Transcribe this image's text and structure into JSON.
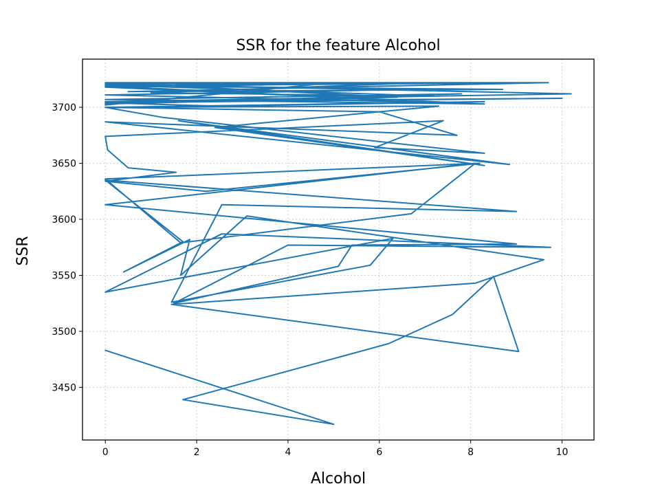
{
  "chart_data": {
    "type": "line",
    "title": "SSR for the feature Alcohol",
    "xlabel": "Alcohol",
    "ylabel": "SSR",
    "xlim": [
      -0.5,
      10.7
    ],
    "ylim": [
      3403,
      3743
    ],
    "xticks": [
      0,
      2,
      4,
      6,
      8,
      10
    ],
    "yticks": [
      3450,
      3500,
      3550,
      3600,
      3650,
      3700
    ],
    "grid": true,
    "line_color": "#1f77b4",
    "series": [
      {
        "values": [
          [
            0.0,
            3483
          ],
          [
            5.0,
            3417
          ],
          [
            1.7,
            3439
          ],
          [
            6.2,
            3489
          ],
          [
            7.6,
            3515
          ],
          [
            8.5,
            3549
          ],
          [
            9.05,
            3482
          ],
          [
            1.45,
            3524
          ],
          [
            8.1,
            3543
          ],
          [
            9.6,
            3564
          ],
          [
            3.1,
            3603
          ],
          [
            1.65,
            3550
          ],
          [
            1.85,
            3582
          ],
          [
            0.4,
            3553
          ],
          [
            1.7,
            3580
          ],
          [
            0.0,
            3635
          ],
          [
            9.0,
            3607
          ],
          [
            2.55,
            3613
          ],
          [
            1.45,
            3526
          ],
          [
            5.8,
            3559
          ],
          [
            6.3,
            3583
          ],
          [
            0.0,
            3535
          ],
          [
            2.55,
            3587
          ],
          [
            9.75,
            3575
          ],
          [
            4.0,
            3577
          ],
          [
            1.5,
            3525
          ],
          [
            5.1,
            3558
          ],
          [
            5.4,
            3577
          ],
          [
            9.0,
            3578
          ],
          [
            0.0,
            3613
          ],
          [
            8.1,
            3650
          ],
          [
            6.7,
            3605
          ],
          [
            1.65,
            3579
          ],
          [
            0.0,
            3636
          ],
          [
            8.2,
            3650
          ],
          [
            2.2,
            3625
          ],
          [
            0.0,
            3634
          ],
          [
            1.55,
            3642
          ],
          [
            0.5,
            3646
          ],
          [
            0.05,
            3662
          ],
          [
            0.0,
            3674
          ],
          [
            7.4,
            3688
          ],
          [
            5.9,
            3664
          ],
          [
            8.3,
            3659
          ],
          [
            1.25,
            3691
          ],
          [
            0.0,
            3700
          ],
          [
            6.0,
            3696
          ],
          [
            7.7,
            3675
          ],
          [
            0.0,
            3687
          ],
          [
            8.85,
            3649
          ],
          [
            1.6,
            3688
          ],
          [
            8.3,
            3648
          ],
          [
            2.4,
            3682
          ],
          [
            7.3,
            3701
          ],
          [
            0.0,
            3700
          ],
          [
            8.3,
            3705
          ],
          [
            2.5,
            3701
          ],
          [
            0.0,
            3704
          ],
          [
            10.0,
            3708
          ],
          [
            0.0,
            3705
          ],
          [
            10.2,
            3712
          ],
          [
            0.0,
            3721
          ],
          [
            9.7,
            3722
          ],
          [
            0.5,
            3714
          ],
          [
            8.7,
            3716
          ],
          [
            0.0,
            3719
          ],
          [
            9.5,
            3722
          ],
          [
            0.0,
            3722
          ],
          [
            6.4,
            3709
          ],
          [
            0.0,
            3703
          ],
          [
            7.8,
            3712
          ],
          [
            0.0,
            3707
          ],
          [
            8.3,
            3703
          ],
          [
            0.0,
            3718
          ],
          [
            7.0,
            3722
          ],
          [
            1.0,
            3713
          ],
          [
            7.2,
            3710
          ],
          [
            0.0,
            3720
          ],
          [
            6.9,
            3716
          ],
          [
            0.0,
            3711
          ],
          [
            7.6,
            3704
          ],
          [
            0.0,
            3719
          ],
          [
            5.0,
            3722
          ],
          [
            0.0,
            3702
          ]
        ]
      }
    ]
  }
}
